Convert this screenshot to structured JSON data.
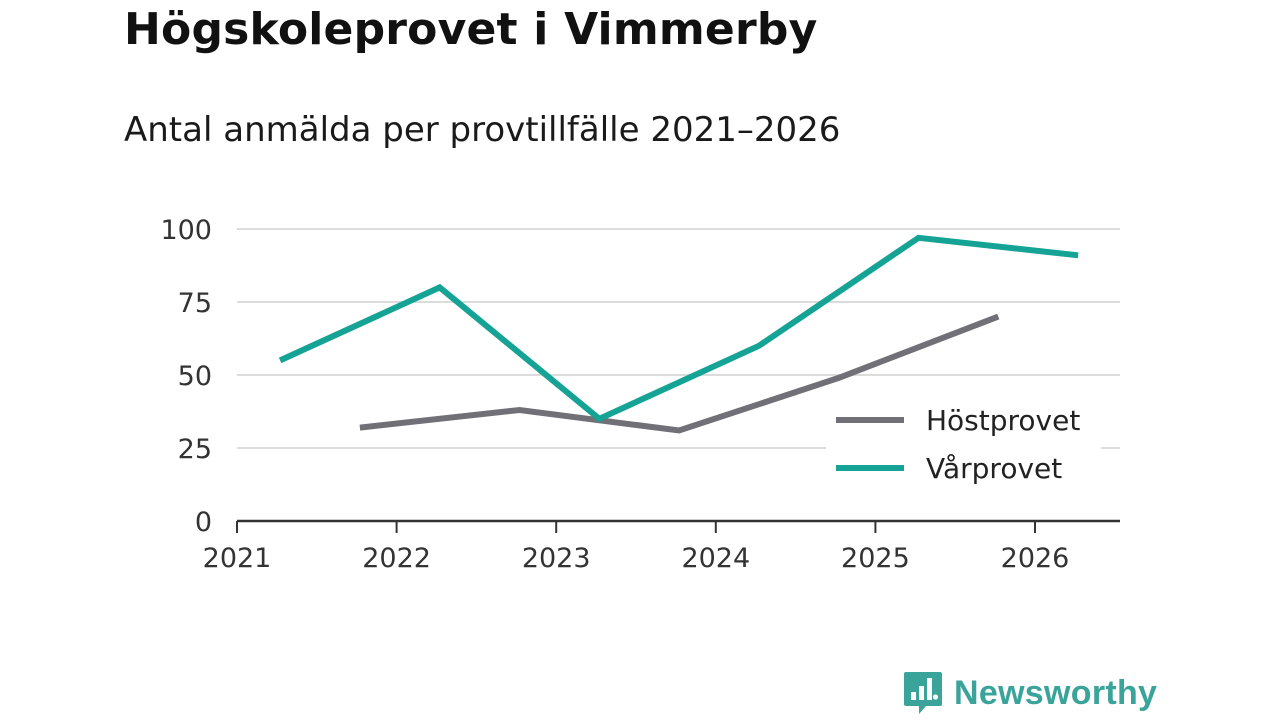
{
  "chart_data": {
    "type": "line",
    "title": "Högskoleprovet i Vimmerby",
    "subtitle": "Antal anmälda per provtillfälle 2021–2026",
    "xlabel": "",
    "ylabel": "",
    "xlim": [
      2021,
      2026.6
    ],
    "ylim": [
      0,
      100
    ],
    "x_ticks": [
      "2021",
      "2022",
      "2023",
      "2024",
      "2025",
      "2026"
    ],
    "y_ticks": [
      "0",
      "25",
      "50",
      "75",
      "100"
    ],
    "grid": true,
    "legend_position": "bottom-right",
    "series": [
      {
        "name": "Höstprovet",
        "color": "#727077",
        "x": [
          2021.77,
          2022.77,
          2023.77,
          2024.77,
          2025.77
        ],
        "y": [
          32,
          38,
          31,
          49,
          70
        ]
      },
      {
        "name": "Vårprovet",
        "color": "#14a394",
        "x": [
          2021.27,
          2022.27,
          2023.27,
          2024.27,
          2025.27,
          2026.27
        ],
        "y": [
          55,
          80,
          35,
          60,
          97,
          91
        ]
      }
    ]
  },
  "brand": {
    "name": "Newsworthy",
    "icon": "bar-chart-speech-icon"
  }
}
